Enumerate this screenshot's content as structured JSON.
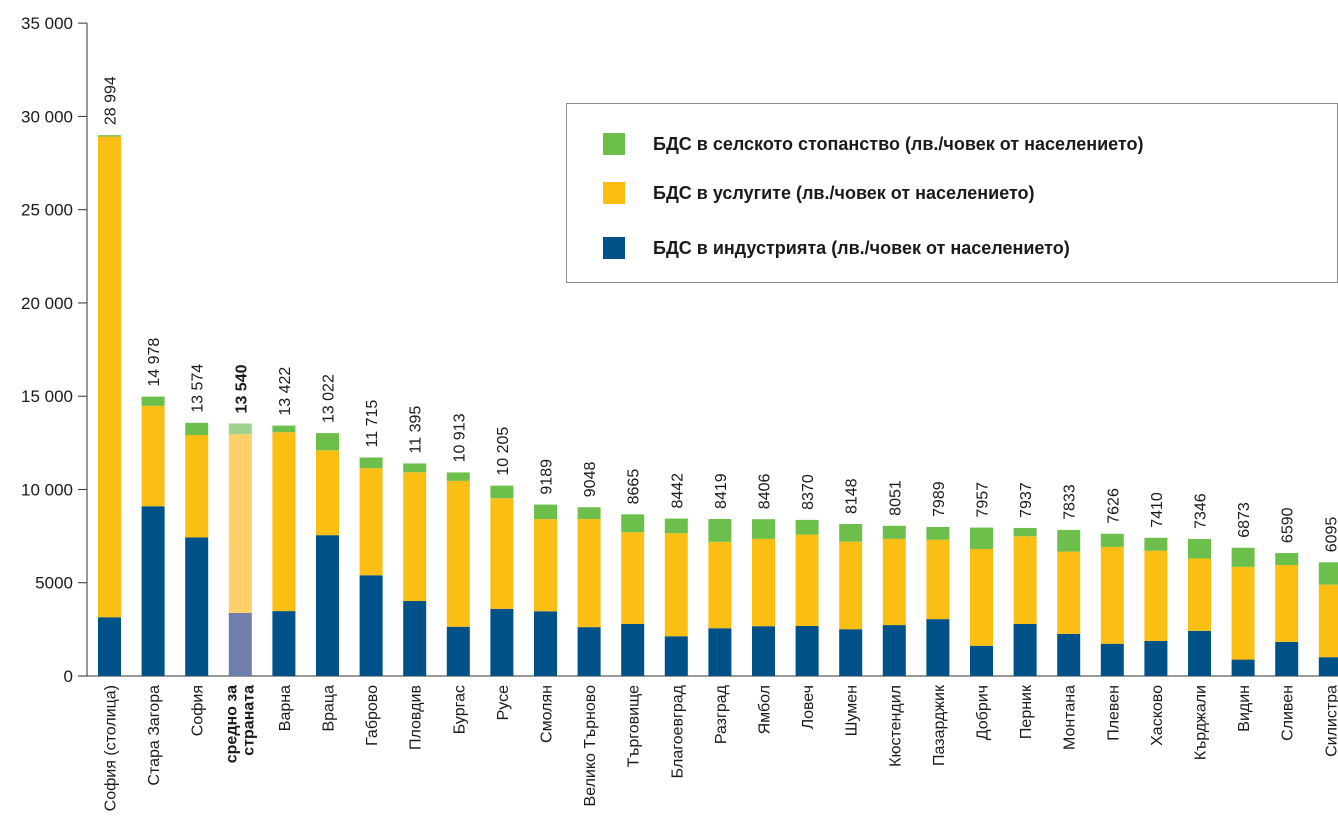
{
  "chart_data": {
    "type": "bar",
    "stacked": true,
    "categories": [
      "София (столица)",
      "Стара Загора",
      "София",
      "средно за страната",
      "Варна",
      "Враца",
      "Габрово",
      "Пловдив",
      "Бургас",
      "Русе",
      "Смолян",
      "Велико Търново",
      "Търговище",
      "Благоевград",
      "Разград",
      "Ямбол",
      "Ловеч",
      "Шумен",
      "Кюстендил",
      "Пазарджик",
      "Добрич",
      "Перник",
      "Монтана",
      "Плевен",
      "Хасково",
      "Кърджали",
      "Видин",
      "Сливен",
      "Силистра"
    ],
    "highlight_category": "средно за страната",
    "totals": [
      28994,
      14978,
      13574,
      13540,
      13422,
      13022,
      11715,
      11395,
      10913,
      10205,
      9189,
      9048,
      8665,
      8442,
      8419,
      8406,
      8370,
      8148,
      8051,
      7989,
      7957,
      7937,
      7833,
      7626,
      7410,
      7346,
      6873,
      6590,
      6095
    ],
    "total_labels": [
      "28 994",
      "14 978",
      "13 574",
      "13 540",
      "13 422",
      "13 022",
      "11 715",
      "11 395",
      "10 913",
      "10 205",
      "9189",
      "9048",
      "8665",
      "8442",
      "8419",
      "8406",
      "8370",
      "8148",
      "8051",
      "7989",
      "7957",
      "7937",
      "7833",
      "7626",
      "7410",
      "7346",
      "6873",
      "6590",
      "6095"
    ],
    "series": [
      {
        "name": "БДС в индустрията (лв./човек от населението)",
        "color": "#005187",
        "highlight_color": "#6e7fac",
        "values": [
          3150,
          9100,
          7430,
          3380,
          3480,
          7550,
          5400,
          4020,
          2640,
          3600,
          3470,
          2620,
          2790,
          2130,
          2560,
          2670,
          2680,
          2510,
          2730,
          3050,
          1620,
          2790,
          2260,
          1730,
          1880,
          2420,
          880,
          1830,
          1010
        ]
      },
      {
        "name": "БДС в услугите (лв./човек от населението)",
        "color": "#fbbf14",
        "highlight_color": "#fdd06a",
        "values": [
          25770,
          5380,
          5490,
          9590,
          9590,
          4550,
          5740,
          6900,
          7820,
          5930,
          4940,
          5800,
          4920,
          5520,
          4630,
          4680,
          4900,
          4690,
          4620,
          4260,
          5190,
          4700,
          4410,
          5190,
          4840,
          3880,
          4970,
          4120,
          3890
        ]
      },
      {
        "name": "БДС в селското стопанство (лв./човек от населението)",
        "color": "#6dbf4b",
        "highlight_color": "#9ed38d",
        "values": [
          74,
          498,
          654,
          570,
          352,
          922,
          575,
          475,
          453,
          675,
          779,
          628,
          955,
          792,
          1229,
          1056,
          790,
          948,
          701,
          679,
          1147,
          447,
          1163,
          706,
          690,
          1046,
          1023,
          640,
          1195
        ]
      }
    ],
    "legend_order": [
      "БДС в селското стопанство (лв./човек от населението)",
      "БДС в услугите (лв./човек от населението)",
      "БДС в индустрията (лв./човек от населението)"
    ],
    "legend_placement": "top-right",
    "ylim": [
      0,
      35000
    ],
    "yticks": [
      0,
      5000,
      10000,
      15000,
      20000,
      25000,
      30000,
      35000
    ],
    "ytick_labels": [
      "0",
      "5000",
      "10 000",
      "15 000",
      "20 000",
      "25 000",
      "30 000",
      "35 000"
    ],
    "grid": false,
    "title": "",
    "xlabel": "",
    "ylabel": ""
  }
}
